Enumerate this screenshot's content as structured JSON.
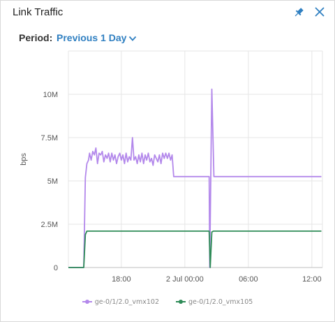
{
  "widget": {
    "title": "Link Traffic",
    "pin_icon": "pin-icon",
    "close_icon": "close-icon"
  },
  "period": {
    "label": "Period:",
    "value": "Previous 1 Day",
    "dropdown_icon": "chevron-down-icon"
  },
  "colors": {
    "accent": "#2f7fc1",
    "series1": "#b388eb",
    "series2": "#2e8b57",
    "grid": "#e6e6e6",
    "axis": "#bfbfbf"
  },
  "chart_data": {
    "type": "line",
    "title": "",
    "ylabel": "bps",
    "xlabel": "",
    "y_ticks": [
      "0",
      "2.5M",
      "5M",
      "7.5M",
      "10M"
    ],
    "y_tick_values": [
      0,
      2500000,
      5000000,
      7500000,
      10000000
    ],
    "ylim": [
      0,
      12500000
    ],
    "x_ticks": [
      "18:00",
      "2 Jul 00:00",
      "06:00",
      "12:00"
    ],
    "x_tick_hours": [
      18,
      24,
      30,
      36
    ],
    "xlim_hours": [
      13,
      37
    ],
    "grid": true,
    "legend_position": "bottom",
    "series": [
      {
        "name": "ge-0/1/2.0_vmx102",
        "points": [
          [
            13.0,
            0
          ],
          [
            14.45,
            0
          ],
          [
            14.6,
            5200000
          ],
          [
            14.75,
            6000000
          ],
          [
            14.9,
            6200000
          ],
          [
            15.0,
            6600000
          ],
          [
            15.15,
            6200000
          ],
          [
            15.3,
            6700000
          ],
          [
            15.45,
            6500000
          ],
          [
            15.6,
            6900000
          ],
          [
            15.75,
            6000000
          ],
          [
            15.9,
            6600000
          ],
          [
            16.05,
            6500000
          ],
          [
            16.2,
            6700000
          ],
          [
            16.35,
            6100000
          ],
          [
            16.5,
            6500000
          ],
          [
            16.65,
            6300000
          ],
          [
            16.8,
            6600000
          ],
          [
            16.95,
            6100000
          ],
          [
            17.1,
            6600000
          ],
          [
            17.25,
            6200000
          ],
          [
            17.4,
            6500000
          ],
          [
            17.55,
            6000000
          ],
          [
            17.7,
            6400000
          ],
          [
            17.85,
            6600000
          ],
          [
            18.0,
            6200000
          ],
          [
            18.15,
            6500000
          ],
          [
            18.3,
            6000000
          ],
          [
            18.45,
            6600000
          ],
          [
            18.6,
            6100000
          ],
          [
            18.75,
            6400000
          ],
          [
            18.9,
            6200000
          ],
          [
            19.05,
            7500000
          ],
          [
            19.2,
            6200000
          ],
          [
            19.35,
            6400000
          ],
          [
            19.5,
            6000000
          ],
          [
            19.65,
            6500000
          ],
          [
            19.8,
            6100000
          ],
          [
            19.95,
            6600000
          ],
          [
            20.1,
            6000000
          ],
          [
            20.25,
            6500000
          ],
          [
            20.4,
            6200000
          ],
          [
            20.55,
            6600000
          ],
          [
            20.7,
            6100000
          ],
          [
            20.85,
            6300000
          ],
          [
            21.0,
            5900000
          ],
          [
            21.15,
            6500000
          ],
          [
            21.3,
            6300000
          ],
          [
            21.45,
            6100000
          ],
          [
            21.6,
            6500000
          ],
          [
            21.75,
            6000000
          ],
          [
            21.9,
            6600000
          ],
          [
            22.05,
            6300000
          ],
          [
            22.2,
            6600000
          ],
          [
            22.35,
            6300000
          ],
          [
            22.5,
            6600000
          ],
          [
            22.65,
            6200000
          ],
          [
            22.8,
            6500000
          ],
          [
            22.95,
            5250000
          ],
          [
            24.0,
            5250000
          ],
          [
            25.0,
            5250000
          ],
          [
            26.0,
            5250000
          ],
          [
            26.3,
            5250000
          ],
          [
            26.35,
            0
          ],
          [
            26.55,
            10300000
          ],
          [
            26.75,
            5250000
          ],
          [
            28.0,
            5250000
          ],
          [
            30.0,
            5250000
          ],
          [
            32.0,
            5250000
          ],
          [
            34.0,
            5250000
          ],
          [
            35.0,
            5250000
          ],
          [
            36.0,
            5250000
          ],
          [
            36.9,
            5250000
          ]
        ]
      },
      {
        "name": "ge-0/1/2.0_vmx105",
        "points": [
          [
            13.0,
            0
          ],
          [
            14.45,
            0
          ],
          [
            14.6,
            1900000
          ],
          [
            14.75,
            2100000
          ],
          [
            16.0,
            2100000
          ],
          [
            18.0,
            2100000
          ],
          [
            20.0,
            2100000
          ],
          [
            22.0,
            2100000
          ],
          [
            24.0,
            2100000
          ],
          [
            26.0,
            2100000
          ],
          [
            26.3,
            2100000
          ],
          [
            26.4,
            0
          ],
          [
            26.55,
            2050000
          ],
          [
            26.7,
            2100000
          ],
          [
            28.0,
            2100000
          ],
          [
            30.0,
            2100000
          ],
          [
            32.0,
            2100000
          ],
          [
            34.0,
            2100000
          ],
          [
            36.0,
            2100000
          ],
          [
            36.9,
            2100000
          ]
        ]
      }
    ]
  }
}
